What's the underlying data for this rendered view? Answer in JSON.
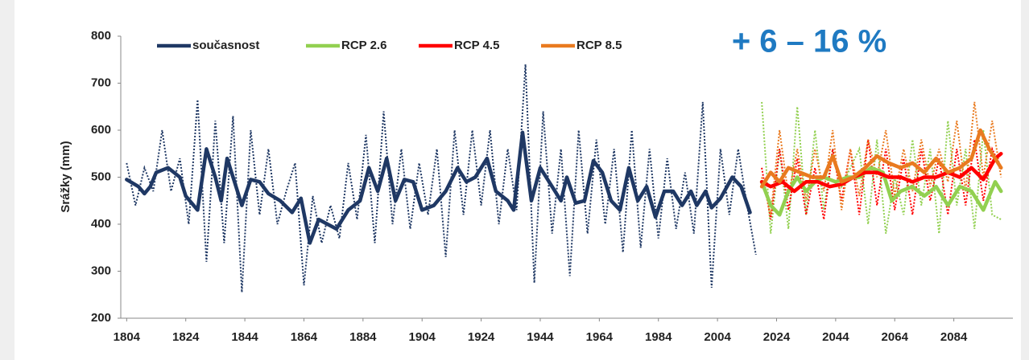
{
  "chart_data": {
    "type": "line",
    "ylabel": "Srážky (mm)",
    "annotation": "+ 6 – 16 %",
    "xlim": [
      1802,
      2104
    ],
    "xticks": [
      1804,
      1824,
      1844,
      1864,
      1884,
      1904,
      1924,
      1944,
      1964,
      1984,
      2004,
      2024,
      2044,
      2064,
      2084
    ],
    "ylim": [
      200,
      800
    ],
    "yticks": [
      200,
      300,
      400,
      500,
      600,
      700,
      800
    ],
    "grid": false,
    "series": [
      {
        "name": "současnost",
        "color": "#1f3864",
        "x": [
          1804,
          1808,
          1810,
          1812,
          1814,
          1818,
          1822,
          1824,
          1828,
          1831,
          1834,
          1836,
          1838,
          1841,
          1843,
          1846,
          1849,
          1852,
          1856,
          1860,
          1863,
          1866,
          1869,
          1872,
          1875,
          1879,
          1883,
          1886,
          1889,
          1892,
          1895,
          1898,
          1901,
          1904,
          1908,
          1912,
          1916,
          1919,
          1922,
          1926,
          1929,
          1933,
          1935,
          1938,
          1941,
          1944,
          1948,
          1951,
          1953,
          1956,
          1959,
          1962,
          1965,
          1968,
          1971,
          1974,
          1977,
          1980,
          1983,
          1986,
          1989,
          1992,
          1995,
          1997,
          2000,
          2002,
          2005,
          2009,
          2012,
          2015
        ],
        "values": [
          495,
          480,
          465,
          480,
          510,
          520,
          500,
          460,
          430,
          560,
          500,
          450,
          540,
          480,
          440,
          495,
          490,
          465,
          450,
          425,
          455,
          360,
          410,
          400,
          390,
          430,
          450,
          520,
          470,
          540,
          450,
          495,
          490,
          430,
          440,
          470,
          520,
          490,
          500,
          540,
          470,
          450,
          430,
          595,
          450,
          520,
          480,
          450,
          500,
          445,
          450,
          535,
          510,
          450,
          430,
          520,
          450,
          480,
          415,
          470,
          470,
          440,
          470,
          440,
          470,
          435,
          455,
          500,
          480,
          425
        ],
        "annual": {
          "x": [
            1804,
            1807,
            1810,
            1813,
            1816,
            1819,
            1822,
            1825,
            1828,
            1831,
            1834,
            1837,
            1840,
            1843,
            1846,
            1849,
            1852,
            1855,
            1858,
            1861,
            1864,
            1867,
            1870,
            1873,
            1876,
            1879,
            1882,
            1885,
            1888,
            1891,
            1894,
            1897,
            1900,
            1903,
            1906,
            1909,
            1912,
            1915,
            1918,
            1921,
            1924,
            1927,
            1930,
            1933,
            1936,
            1939,
            1942,
            1945,
            1948,
            1951,
            1954,
            1957,
            1960,
            1963,
            1966,
            1969,
            1972,
            1975,
            1978,
            1981,
            1984,
            1987,
            1990,
            1993,
            1996,
            1999,
            2002,
            2005,
            2008,
            2011,
            2014,
            2017
          ],
          "values": [
            530,
            440,
            520,
            470,
            600,
            470,
            540,
            400,
            665,
            320,
            620,
            360,
            630,
            255,
            600,
            420,
            560,
            400,
            470,
            530,
            270,
            460,
            360,
            440,
            370,
            530,
            410,
            590,
            360,
            640,
            400,
            560,
            390,
            530,
            420,
            560,
            330,
            600,
            420,
            600,
            440,
            600,
            400,
            560,
            430,
            740,
            275,
            640,
            380,
            560,
            290,
            600,
            380,
            580,
            400,
            560,
            340,
            600,
            350,
            560,
            370,
            540,
            390,
            510,
            380,
            660,
            265,
            560,
            420,
            560,
            440,
            335
          ]
        }
      },
      {
        "name": "RCP 2.6",
        "color": "#92d050",
        "x": [
          2019,
          2022,
          2025,
          2028,
          2031,
          2034,
          2037,
          2040,
          2044,
          2048,
          2052,
          2056,
          2060,
          2063,
          2066,
          2070,
          2074,
          2078,
          2082,
          2086,
          2090,
          2094,
          2098,
          2100
        ],
        "values": [
          490,
          440,
          420,
          470,
          500,
          470,
          490,
          500,
          490,
          500,
          500,
          520,
          510,
          450,
          470,
          480,
          460,
          480,
          440,
          480,
          470,
          430,
          490,
          470
        ],
        "annual": {
          "x": [
            2019,
            2022,
            2025,
            2028,
            2031,
            2034,
            2037,
            2040,
            2043,
            2046,
            2049,
            2052,
            2055,
            2058,
            2061,
            2064,
            2067,
            2070,
            2073,
            2076,
            2079,
            2082,
            2085,
            2088,
            2091,
            2094,
            2097,
            2100
          ],
          "values": [
            660,
            380,
            560,
            390,
            650,
            420,
            600,
            430,
            560,
            480,
            520,
            560,
            400,
            580,
            380,
            500,
            420,
            580,
            440,
            560,
            380,
            620,
            440,
            560,
            390,
            600,
            420,
            410
          ]
        }
      },
      {
        "name": "RCP 4.5",
        "color": "#ff0000",
        "x": [
          2019,
          2022,
          2026,
          2030,
          2034,
          2038,
          2042,
          2046,
          2050,
          2054,
          2058,
          2062,
          2066,
          2070,
          2074,
          2078,
          2082,
          2086,
          2090,
          2094,
          2098,
          2100
        ],
        "values": [
          490,
          480,
          490,
          470,
          490,
          490,
          480,
          485,
          500,
          510,
          510,
          500,
          500,
          490,
          500,
          500,
          510,
          500,
          520,
          495,
          540,
          550
        ],
        "annual": {
          "x": [
            2019,
            2022,
            2025,
            2028,
            2031,
            2034,
            2037,
            2040,
            2043,
            2046,
            2049,
            2052,
            2055,
            2058,
            2061,
            2064,
            2067,
            2070,
            2073,
            2076,
            2079,
            2082,
            2085,
            2088,
            2091,
            2094,
            2097,
            2100
          ],
          "values": [
            520,
            410,
            560,
            430,
            540,
            420,
            520,
            410,
            560,
            450,
            560,
            420,
            580,
            440,
            560,
            430,
            540,
            420,
            560,
            450,
            540,
            420,
            560,
            440,
            580,
            450,
            560,
            520
          ]
        }
      },
      {
        "name": "RCP 8.5",
        "color": "#e97a1f",
        "x": [
          2019,
          2022,
          2025,
          2028,
          2032,
          2036,
          2040,
          2043,
          2046,
          2050,
          2054,
          2058,
          2062,
          2066,
          2070,
          2074,
          2078,
          2082,
          2086,
          2090,
          2093,
          2096,
          2100
        ],
        "values": [
          480,
          510,
          490,
          520,
          510,
          500,
          500,
          545,
          490,
          500,
          520,
          545,
          530,
          520,
          530,
          510,
          540,
          510,
          520,
          540,
          600,
          560,
          520
        ],
        "annual": {
          "x": [
            2019,
            2022,
            2025,
            2028,
            2031,
            2034,
            2037,
            2040,
            2043,
            2046,
            2049,
            2052,
            2055,
            2058,
            2061,
            2064,
            2067,
            2070,
            2073,
            2076,
            2079,
            2082,
            2085,
            2088,
            2091,
            2094,
            2097,
            2100
          ],
          "values": [
            500,
            420,
            600,
            460,
            560,
            450,
            560,
            470,
            600,
            430,
            560,
            460,
            580,
            500,
            600,
            460,
            560,
            470,
            580,
            480,
            560,
            490,
            620,
            470,
            660,
            500,
            620,
            500
          ]
        }
      }
    ]
  }
}
